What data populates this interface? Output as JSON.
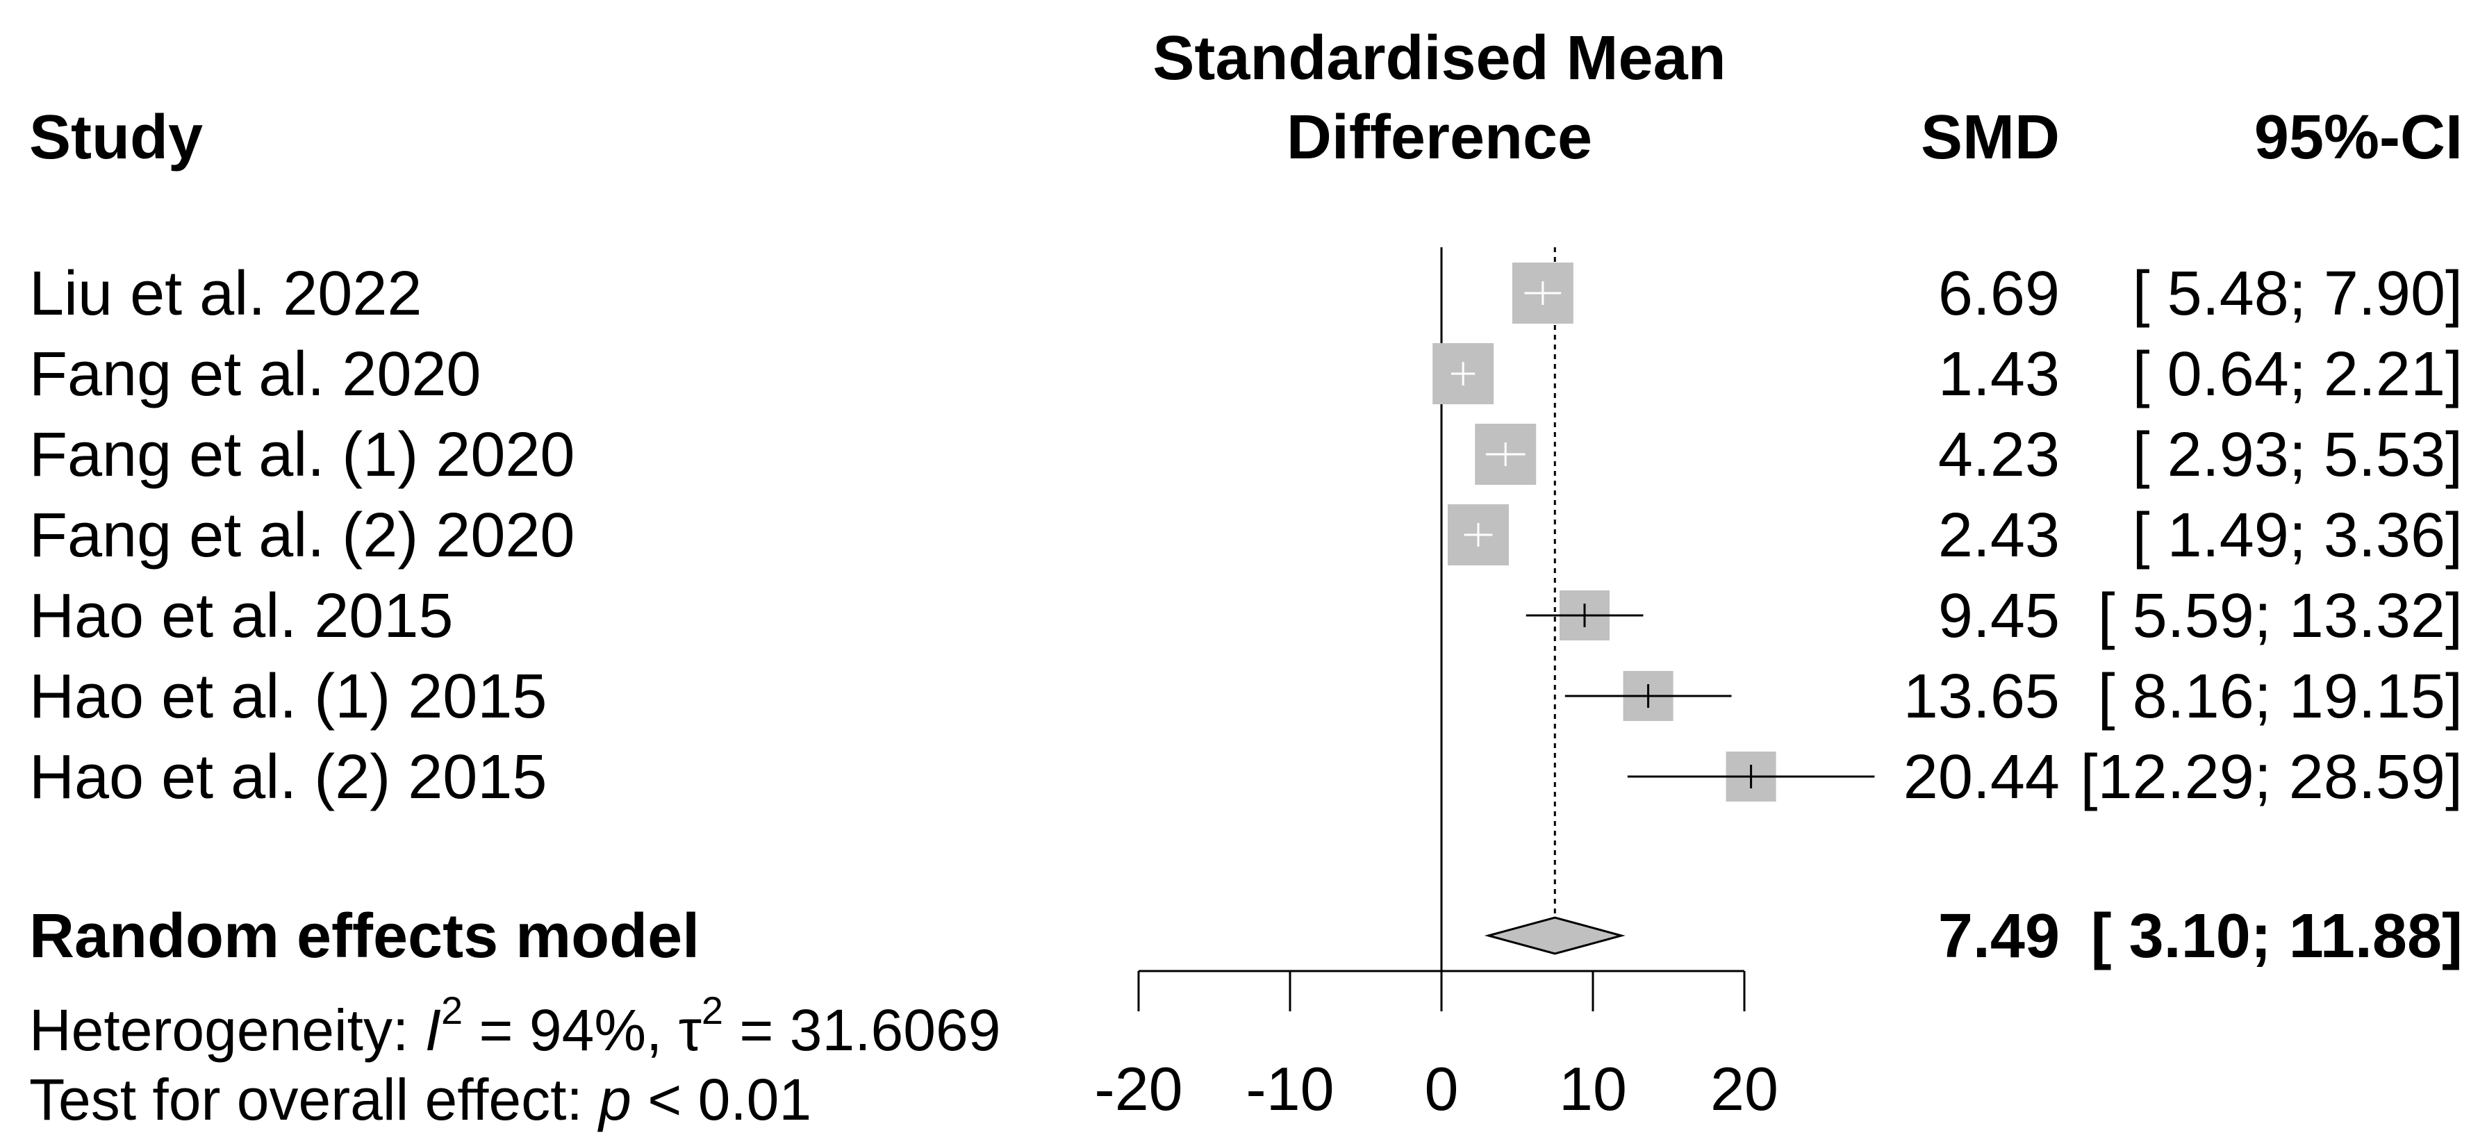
{
  "headers": {
    "study": "Study",
    "effect_line1": "Standardised Mean",
    "effect_line2": "Difference",
    "smd": "SMD",
    "ci": "95%-CI"
  },
  "heterogeneity": {
    "prefix": "Heterogeneity: ",
    "i2_symbol": "I",
    "i2_value": " = 94%, ",
    "tau_symbol": "τ",
    "tau_value": " = 31.6069",
    "sup": "2"
  },
  "overall_test": {
    "label": "Test for overall effect:  ",
    "p_symbol": "p",
    "p_value": " < 0.01"
  },
  "colors": {
    "box": "#c0c0c0",
    "diamond": "#c0c0c0",
    "line": "#000000"
  },
  "chart_data": {
    "type": "forest",
    "xlabel": "Standardised Mean Difference",
    "xlim": [
      -20,
      20
    ],
    "ticks": [
      -20,
      -10,
      0,
      10,
      20
    ],
    "tick_labels": [
      "-20",
      "-10",
      "0",
      "10",
      "20"
    ],
    "null_line": 0,
    "studies": [
      {
        "name": "Liu et al. 2022",
        "smd": 6.69,
        "lower": 5.48,
        "upper": 7.9,
        "smd_label": "6.69",
        "ci_label": "[ 5.48;  7.90]"
      },
      {
        "name": "Fang et al. 2020",
        "smd": 1.43,
        "lower": 0.64,
        "upper": 2.21,
        "smd_label": "1.43",
        "ci_label": "[ 0.64;  2.21]"
      },
      {
        "name": "Fang et al. (1) 2020",
        "smd": 4.23,
        "lower": 2.93,
        "upper": 5.53,
        "smd_label": "4.23",
        "ci_label": "[ 2.93;  5.53]"
      },
      {
        "name": "Fang et al. (2) 2020",
        "smd": 2.43,
        "lower": 1.49,
        "upper": 3.36,
        "smd_label": "2.43",
        "ci_label": "[ 1.49;  3.36]"
      },
      {
        "name": "Hao et al. 2015",
        "smd": 9.45,
        "lower": 5.59,
        "upper": 13.32,
        "smd_label": "9.45",
        "ci_label": "[ 5.59; 13.32]"
      },
      {
        "name": "Hao et al. (1) 2015",
        "smd": 13.65,
        "lower": 8.16,
        "upper": 19.15,
        "smd_label": "13.65",
        "ci_label": "[ 8.16; 19.15]"
      },
      {
        "name": "Hao et al. (2) 2015",
        "smd": 20.44,
        "lower": 12.29,
        "upper": 28.59,
        "smd_label": "20.44",
        "ci_label": "[12.29; 28.59]"
      }
    ],
    "pooled": {
      "name": "Random effects model",
      "smd": 7.49,
      "lower": 3.1,
      "upper": 11.88,
      "smd_label": "7.49",
      "ci_label": "[ 3.10; 11.88]"
    }
  }
}
